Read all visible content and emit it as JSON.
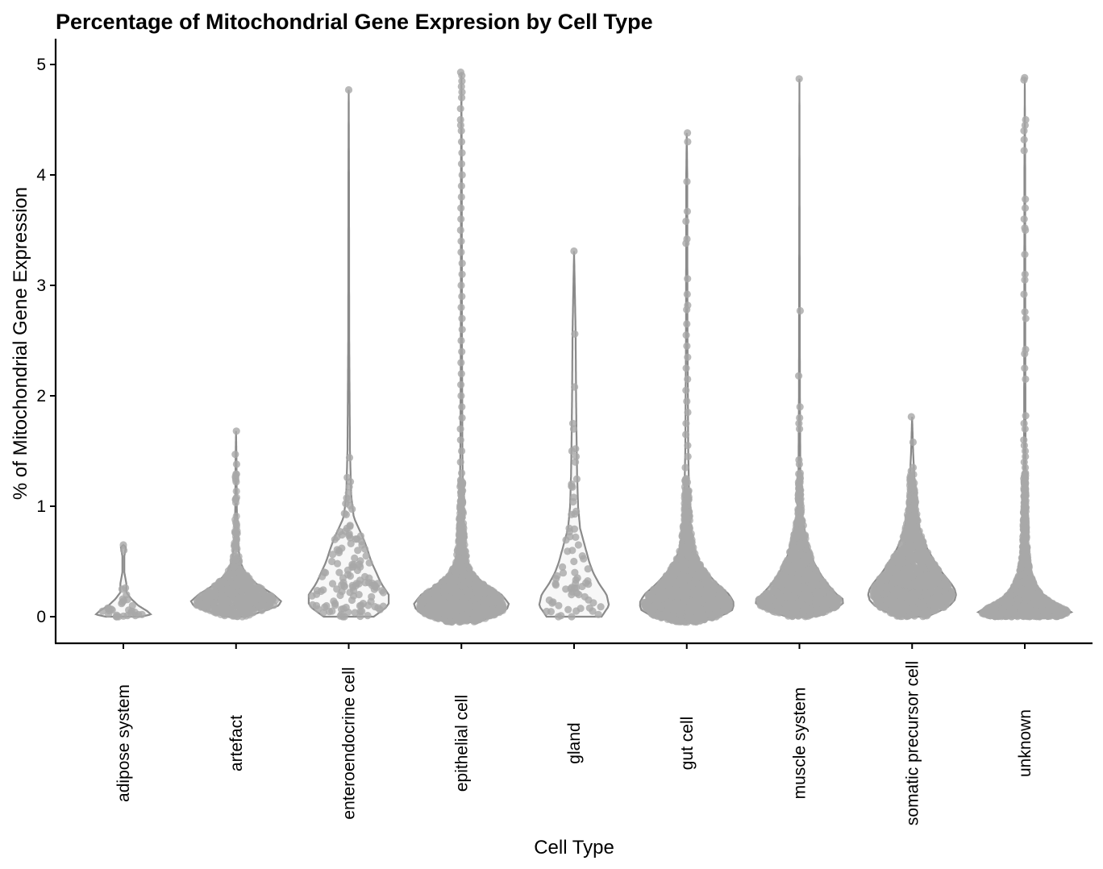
{
  "chart_data": {
    "type": "violin",
    "title": "Percentage of Mitochondrial Gene Expresion by Cell Type",
    "xlabel": "Cell Type",
    "ylabel": "% of Mitochondrial Gene Expression",
    "ylim": [
      -0.24,
      5.2
    ],
    "yticks": [
      0,
      1,
      2,
      3,
      4,
      5
    ],
    "grid": false,
    "legend": "none",
    "colors": {
      "violin_stroke": "#8a8a8a",
      "violin_fill": "#f7f7f7",
      "point": "#a8a8a8",
      "axis": "#000000"
    },
    "categories": [
      "adipose system",
      "artefact",
      "enteroendocrine cell",
      "epithelial cell",
      "gland",
      "gut cell",
      "muscle system",
      "somatic precursor cell",
      "unknown"
    ],
    "series": [
      {
        "category": "adipose system",
        "min": 0.0,
        "max": 0.65,
        "profile": [
          [
            0.0,
            0.35
          ],
          [
            0.02,
            0.55
          ],
          [
            0.05,
            0.48
          ],
          [
            0.1,
            0.3
          ],
          [
            0.16,
            0.16
          ],
          [
            0.22,
            0.06
          ],
          [
            0.3,
            0.06
          ],
          [
            0.4,
            0.02
          ],
          [
            0.55,
            0.02
          ],
          [
            0.63,
            0.05
          ],
          [
            0.65,
            0.0
          ]
        ],
        "outliers": [
          0.65,
          0.6,
          0.26,
          0.2,
          0.16,
          0.13,
          0.1,
          0.06,
          0.04,
          0.03,
          0.02,
          0.01,
          0.0,
          0.0,
          0.01,
          0.02,
          0.0
        ]
      },
      {
        "category": "artefact",
        "min": 0.0,
        "max": 1.68,
        "profile": [
          [
            0.0,
            0.2
          ],
          [
            0.05,
            0.55
          ],
          [
            0.1,
            0.85
          ],
          [
            0.14,
            0.9
          ],
          [
            0.2,
            0.75
          ],
          [
            0.3,
            0.4
          ],
          [
            0.4,
            0.18
          ],
          [
            0.5,
            0.08
          ],
          [
            0.7,
            0.03
          ],
          [
            1.0,
            0.015
          ],
          [
            1.4,
            0.01
          ],
          [
            1.68,
            0.0
          ]
        ],
        "outliers": [
          1.68,
          1.47,
          1.38,
          1.27,
          1.22,
          0.76,
          0.65,
          0.6,
          0.55,
          0.52,
          0.5,
          0.47,
          0.45
        ]
      },
      {
        "category": "enteroendocrine cell",
        "min": 0.0,
        "max": 4.77,
        "profile": [
          [
            0.0,
            0.5
          ],
          [
            0.1,
            0.8
          ],
          [
            0.2,
            0.8
          ],
          [
            0.3,
            0.65
          ],
          [
            0.4,
            0.55
          ],
          [
            0.5,
            0.45
          ],
          [
            0.6,
            0.38
          ],
          [
            0.7,
            0.3
          ],
          [
            0.8,
            0.2
          ],
          [
            0.9,
            0.1
          ],
          [
            1.1,
            0.05
          ],
          [
            1.5,
            0.025
          ],
          [
            2.5,
            0.01
          ],
          [
            4.0,
            0.006
          ],
          [
            4.77,
            0.0
          ]
        ],
        "outliers": [
          4.77,
          1.44,
          1.26,
          1.12,
          1.06,
          0.8,
          0.77,
          0.75,
          0.72,
          0.68,
          0.65,
          0.62,
          0.6,
          0.58,
          0.55,
          0.53,
          0.5,
          0.48,
          0.45,
          0.42,
          0.4,
          0.38,
          0.35,
          0.33,
          0.3,
          0.28,
          0.25,
          0.22,
          0.2,
          0.18,
          0.15,
          0.12,
          0.1,
          0.08,
          0.05,
          0.02,
          0.0,
          0.0,
          0.01
        ]
      },
      {
        "category": "epithelial cell",
        "min": -0.05,
        "max": 4.93,
        "profile": [
          [
            -0.05,
            0.25
          ],
          [
            0.0,
            0.65
          ],
          [
            0.05,
            0.9
          ],
          [
            0.12,
            0.95
          ],
          [
            0.2,
            0.8
          ],
          [
            0.3,
            0.45
          ],
          [
            0.4,
            0.22
          ],
          [
            0.5,
            0.12
          ],
          [
            0.7,
            0.06
          ],
          [
            1.0,
            0.035
          ],
          [
            1.5,
            0.02
          ],
          [
            2.5,
            0.012
          ],
          [
            4.0,
            0.008
          ],
          [
            4.93,
            0.0
          ]
        ],
        "outliers": [
          4.93,
          4.9,
          4.85,
          4.8,
          4.75,
          4.7,
          4.6,
          4.5,
          4.45,
          4.4,
          4.3,
          4.2,
          4.1,
          4.0,
          3.9,
          3.8,
          3.7,
          3.6,
          3.5,
          3.4,
          3.3,
          3.2,
          3.1,
          3.0,
          2.9,
          2.8,
          2.7,
          2.6,
          2.5,
          2.4,
          2.3,
          2.2,
          2.1,
          2.0,
          1.9,
          1.8,
          1.7,
          1.6,
          1.5,
          1.4,
          1.3,
          1.2,
          1.1,
          1.0,
          0.9,
          0.8
        ]
      },
      {
        "category": "gland",
        "min": 0.0,
        "max": 3.31,
        "profile": [
          [
            0.0,
            0.55
          ],
          [
            0.1,
            0.7
          ],
          [
            0.2,
            0.65
          ],
          [
            0.3,
            0.5
          ],
          [
            0.4,
            0.38
          ],
          [
            0.5,
            0.3
          ],
          [
            0.6,
            0.24
          ],
          [
            0.7,
            0.18
          ],
          [
            0.8,
            0.12
          ],
          [
            1.0,
            0.08
          ],
          [
            1.3,
            0.06
          ],
          [
            1.6,
            0.05
          ],
          [
            2.0,
            0.04
          ],
          [
            2.6,
            0.03
          ],
          [
            3.31,
            0.0
          ]
        ],
        "outliers": [
          3.31,
          2.56,
          2.08,
          1.75,
          1.7,
          1.52,
          1.5,
          1.45,
          1.4,
          1.2,
          1.18,
          1.08,
          1.04,
          0.93,
          0.8,
          0.77,
          0.72,
          0.65,
          0.6,
          0.55,
          0.5,
          0.45,
          0.4,
          0.35,
          0.3,
          0.25,
          0.2,
          0.15,
          0.1,
          0.05,
          0.02,
          0.0,
          0.0
        ]
      },
      {
        "category": "gut cell",
        "min": -0.05,
        "max": 4.38,
        "profile": [
          [
            -0.05,
            0.2
          ],
          [
            0.0,
            0.65
          ],
          [
            0.05,
            0.9
          ],
          [
            0.12,
            0.95
          ],
          [
            0.2,
            0.85
          ],
          [
            0.3,
            0.6
          ],
          [
            0.4,
            0.4
          ],
          [
            0.5,
            0.25
          ],
          [
            0.6,
            0.15
          ],
          [
            0.8,
            0.08
          ],
          [
            1.0,
            0.05
          ],
          [
            1.5,
            0.03
          ],
          [
            2.5,
            0.015
          ],
          [
            4.0,
            0.01
          ],
          [
            4.38,
            0.0
          ]
        ],
        "outliers": [
          4.38,
          4.3,
          3.94,
          3.67,
          3.58,
          3.42,
          3.38,
          3.06,
          2.92,
          2.82,
          2.78,
          2.65,
          2.55,
          2.45,
          2.35,
          2.25,
          2.15,
          2.05,
          1.95,
          1.85,
          1.75,
          1.65,
          1.55,
          1.45,
          1.35,
          1.25,
          1.15,
          1.05,
          0.95
        ]
      },
      {
        "category": "muscle system",
        "min": 0.0,
        "max": 4.87,
        "profile": [
          [
            0.0,
            0.25
          ],
          [
            0.05,
            0.6
          ],
          [
            0.1,
            0.85
          ],
          [
            0.15,
            0.9
          ],
          [
            0.2,
            0.75
          ],
          [
            0.3,
            0.55
          ],
          [
            0.4,
            0.4
          ],
          [
            0.5,
            0.28
          ],
          [
            0.6,
            0.2
          ],
          [
            0.7,
            0.14
          ],
          [
            0.8,
            0.1
          ],
          [
            0.9,
            0.05
          ],
          [
            1.2,
            0.02
          ],
          [
            2.0,
            0.01
          ],
          [
            4.87,
            0.0
          ]
        ],
        "outliers": [
          4.87,
          2.77,
          2.18,
          1.9,
          1.8,
          1.75,
          1.7,
          1.42,
          1.38,
          1.3,
          1.25,
          1.2,
          1.15,
          1.1,
          1.05,
          1.0
        ]
      },
      {
        "category": "somatic precursor cell",
        "min": 0.0,
        "max": 1.81,
        "profile": [
          [
            0.0,
            0.3
          ],
          [
            0.05,
            0.55
          ],
          [
            0.1,
            0.75
          ],
          [
            0.15,
            0.85
          ],
          [
            0.2,
            0.88
          ],
          [
            0.25,
            0.85
          ],
          [
            0.3,
            0.78
          ],
          [
            0.4,
            0.6
          ],
          [
            0.5,
            0.45
          ],
          [
            0.6,
            0.32
          ],
          [
            0.7,
            0.22
          ],
          [
            0.8,
            0.15
          ],
          [
            1.0,
            0.08
          ],
          [
            1.2,
            0.05
          ],
          [
            1.5,
            0.02
          ],
          [
            1.81,
            0.0
          ]
        ],
        "outliers": [
          1.81,
          1.58,
          1.35,
          1.32,
          1.25,
          1.22,
          1.15,
          1.12,
          1.05,
          1.0
        ]
      },
      {
        "category": "unknown",
        "min": 0.0,
        "max": 4.88,
        "profile": [
          [
            0.0,
            0.7
          ],
          [
            0.03,
            0.95
          ],
          [
            0.06,
            0.9
          ],
          [
            0.1,
            0.7
          ],
          [
            0.15,
            0.5
          ],
          [
            0.2,
            0.35
          ],
          [
            0.3,
            0.2
          ],
          [
            0.4,
            0.12
          ],
          [
            0.5,
            0.07
          ],
          [
            0.7,
            0.04
          ],
          [
            1.0,
            0.025
          ],
          [
            1.5,
            0.015
          ],
          [
            2.5,
            0.01
          ],
          [
            4.0,
            0.008
          ],
          [
            4.88,
            0.0
          ]
        ],
        "outliers": [
          4.88,
          4.86,
          4.5,
          4.45,
          4.4,
          4.32,
          4.22,
          3.78,
          3.7,
          3.6,
          3.52,
          3.5,
          3.28,
          3.1,
          3.05,
          2.92,
          2.76,
          2.7,
          2.42,
          2.38,
          2.25,
          2.15,
          1.82,
          1.75,
          1.7,
          1.6,
          1.55,
          1.5,
          1.45,
          1.4,
          1.35,
          1.3,
          1.25,
          1.2,
          1.15,
          1.1,
          1.05,
          1.0,
          0.95,
          0.9
        ]
      }
    ]
  }
}
